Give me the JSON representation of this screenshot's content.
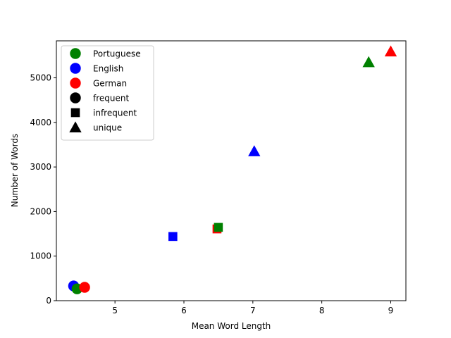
{
  "chart_data": {
    "type": "scatter",
    "xlabel": "Mean Word Length",
    "ylabel": "Number of Words",
    "xlim": [
      4.15,
      9.22
    ],
    "ylim": [
      0,
      5830
    ],
    "x_ticks": [
      5,
      6,
      7,
      8,
      9
    ],
    "y_ticks": [
      0,
      1000,
      2000,
      3000,
      4000,
      5000
    ],
    "grid": false,
    "legend_position": "upper-left",
    "colors": {
      "Portuguese": "#008000",
      "English": "#0000ff",
      "German": "#ff0000"
    },
    "points": [
      {
        "language": "English",
        "kind": "frequent",
        "x": 4.4,
        "y": 330
      },
      {
        "language": "Portuguese",
        "kind": "frequent",
        "x": 4.45,
        "y": 265
      },
      {
        "language": "German",
        "kind": "frequent",
        "x": 4.56,
        "y": 300
      },
      {
        "language": "English",
        "kind": "infrequent",
        "x": 5.84,
        "y": 1440
      },
      {
        "language": "German",
        "kind": "infrequent",
        "x": 6.48,
        "y": 1610
      },
      {
        "language": "Portuguese",
        "kind": "infrequent",
        "x": 6.5,
        "y": 1645
      },
      {
        "language": "English",
        "kind": "unique",
        "x": 7.02,
        "y": 3350
      },
      {
        "language": "Portuguese",
        "kind": "unique",
        "x": 8.68,
        "y": 5350
      },
      {
        "language": "German",
        "kind": "unique",
        "x": 9.0,
        "y": 5590
      }
    ],
    "legend": [
      {
        "label": "Portuguese",
        "marker": "circle",
        "color": "#008000"
      },
      {
        "label": "English",
        "marker": "circle",
        "color": "#0000ff"
      },
      {
        "label": "German",
        "marker": "circle",
        "color": "#ff0000"
      },
      {
        "label": "frequent",
        "marker": "circle",
        "color": "#000000"
      },
      {
        "label": "infrequent",
        "marker": "square",
        "color": "#000000"
      },
      {
        "label": "unique",
        "marker": "triangle",
        "color": "#000000"
      }
    ]
  }
}
